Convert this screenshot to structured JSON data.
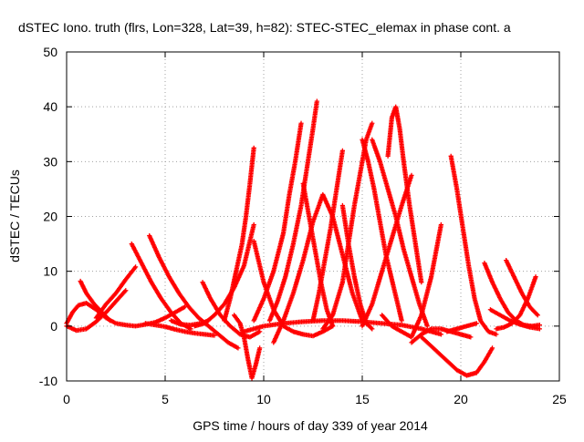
{
  "chart_data": {
    "type": "scatter",
    "title": "dSTEC Iono. truth (flrs, Lon=328, Lat=39, h=82): STEC-STEC_elemax in phase cont. a",
    "xlabel": "GPS time / hours of day 339 of year 2014",
    "ylabel": "dSTEC  / TECUs",
    "xlim": [
      0,
      25
    ],
    "ylim": [
      -10,
      50
    ],
    "xticks": [
      "0",
      "5",
      "10",
      "15",
      "20",
      "25"
    ],
    "yticks": [
      "-10",
      "0",
      "10",
      "20",
      "30",
      "40",
      "50"
    ],
    "grid": true,
    "marker": "plus",
    "color": "#ff0000",
    "series": [
      {
        "x": [
          0.0,
          0.3,
          0.6,
          1.0,
          1.5,
          2.0
        ],
        "y": [
          0.5,
          2.5,
          3.8,
          4.2,
          3.0,
          1.5
        ]
      },
      {
        "x": [
          0.0,
          0.2,
          0.5,
          1.0,
          1.5,
          2.0,
          2.5,
          3.0
        ],
        "y": [
          0.0,
          -0.3,
          -0.8,
          -0.5,
          0.8,
          2.5,
          4.5,
          6.5
        ]
      },
      {
        "x": [
          0.7,
          1.0,
          1.4,
          1.8,
          2.2
        ],
        "y": [
          8.2,
          6.0,
          4.0,
          2.5,
          1.0
        ]
      },
      {
        "x": [
          1.5,
          2.0,
          2.5,
          3.0,
          3.5
        ],
        "y": [
          1.5,
          4.0,
          6.0,
          8.5,
          10.8
        ]
      },
      {
        "x": [
          2.0,
          2.5,
          3.0,
          3.5,
          4.0,
          4.5,
          5.0,
          5.5,
          6.0
        ],
        "y": [
          1.5,
          0.5,
          0.2,
          0.0,
          0.3,
          0.7,
          1.5,
          2.5,
          3.5
        ]
      },
      {
        "x": [
          3.3,
          3.8,
          4.3,
          4.8,
          5.3,
          5.8,
          6.3
        ],
        "y": [
          15.0,
          11.5,
          8.0,
          5.0,
          2.5,
          0.5,
          -0.5
        ]
      },
      {
        "x": [
          4.2,
          4.7,
          5.2,
          5.7,
          6.2,
          6.7,
          7.2,
          7.7,
          8.2,
          8.7
        ],
        "y": [
          16.5,
          12.5,
          9.0,
          6.0,
          3.5,
          1.5,
          0.0,
          -1.5,
          -3.0,
          -4.0
        ]
      },
      {
        "x": [
          4.0,
          4.5,
          5.0,
          5.5,
          6.0,
          6.5,
          7.0,
          7.5
        ],
        "y": [
          0.5,
          0.2,
          -0.1,
          -0.6,
          -1.0,
          -1.3,
          -1.5,
          -1.7
        ]
      },
      {
        "x": [
          5.3,
          5.8,
          6.3,
          6.8,
          7.2
        ],
        "y": [
          1.0,
          0.3,
          0.2,
          0.5,
          1.0
        ]
      },
      {
        "x": [
          6.9,
          7.3,
          7.8,
          8.3,
          8.8,
          9.3,
          9.8
        ],
        "y": [
          8.0,
          5.0,
          2.0,
          0.0,
          -1.5,
          -2.0,
          -1.0
        ]
      },
      {
        "x": [
          6.5,
          7.0,
          7.5,
          8.0,
          8.5,
          9.0,
          9.5
        ],
        "y": [
          0.0,
          0.5,
          2.0,
          4.0,
          7.0,
          11.0,
          18.5
        ]
      },
      {
        "x": [
          8.0,
          8.3,
          8.6,
          8.9,
          9.1,
          9.3,
          9.5
        ],
        "y": [
          1.0,
          5.0,
          10.0,
          15.0,
          20.0,
          26.0,
          32.5
        ]
      },
      {
        "x": [
          8.5,
          8.8,
          9.0,
          9.2,
          9.4,
          9.6,
          9.8
        ],
        "y": [
          2.0,
          0.5,
          -2.0,
          -6.0,
          -9.5,
          -7.0,
          -4.0
        ]
      },
      {
        "x": [
          9.5,
          10.0,
          10.5,
          11.0,
          11.5,
          12.0,
          12.5,
          13.0,
          13.5
        ],
        "y": [
          15.5,
          8.0,
          3.0,
          0.0,
          -1.0,
          -1.5,
          -1.8,
          -1.0,
          0.0
        ]
      },
      {
        "x": [
          9.0,
          10.0,
          11.0,
          12.0,
          13.0,
          14.0,
          15.0,
          16.0,
          17.0,
          18.0,
          19.0
        ],
        "y": [
          -1.0,
          0.0,
          0.5,
          0.8,
          1.0,
          1.0,
          0.8,
          0.5,
          0.2,
          -0.5,
          -1.5
        ]
      },
      {
        "x": [
          9.5,
          10.0,
          10.5,
          11.0,
          11.3,
          11.6,
          11.9
        ],
        "y": [
          1.0,
          5.0,
          10.0,
          17.0,
          24.0,
          30.0,
          37.0
        ]
      },
      {
        "x": [
          10.3,
          10.7,
          11.1,
          11.5,
          11.9,
          12.2,
          12.5,
          12.7
        ],
        "y": [
          1.0,
          4.5,
          9.0,
          15.0,
          22.0,
          29.0,
          36.0,
          41.0
        ]
      },
      {
        "x": [
          12.0,
          12.3,
          12.6,
          12.9,
          13.2,
          13.5
        ],
        "y": [
          26.0,
          20.0,
          14.0,
          8.0,
          3.0,
          0.0
        ]
      },
      {
        "x": [
          12.5,
          12.8,
          13.1,
          13.4,
          13.7,
          14.0
        ],
        "y": [
          1.0,
          6.0,
          12.0,
          18.0,
          25.0,
          32.0
        ]
      },
      {
        "x": [
          10.5,
          11.0,
          11.5,
          12.0,
          12.5,
          13.0,
          13.5,
          14.0,
          14.5,
          15.0
        ],
        "y": [
          -3.0,
          1.0,
          6.0,
          12.0,
          19.0,
          24.0,
          20.0,
          13.0,
          6.0,
          1.0
        ]
      },
      {
        "x": [
          13.0,
          13.5,
          14.0,
          14.3,
          14.6,
          14.9,
          15.2,
          15.5
        ],
        "y": [
          -0.5,
          2.0,
          8.0,
          15.0,
          22.0,
          28.0,
          34.0,
          37.0
        ]
      },
      {
        "x": [
          14.0,
          14.3,
          14.6,
          14.9,
          15.2,
          15.5
        ],
        "y": [
          22.0,
          15.0,
          9.0,
          4.0,
          0.5,
          -0.5
        ]
      },
      {
        "x": [
          15.0,
          15.3,
          15.6,
          15.9,
          16.2,
          16.6,
          17.0
        ],
        "y": [
          34.0,
          30.0,
          25.0,
          19.0,
          13.0,
          7.0,
          1.0
        ]
      },
      {
        "x": [
          15.5,
          15.9,
          16.3,
          16.7,
          17.1,
          17.5,
          17.9,
          18.3
        ],
        "y": [
          34.0,
          30.0,
          25.0,
          20.0,
          14.0,
          9.0,
          4.0,
          0.0
        ]
      },
      {
        "x": [
          16.3,
          16.5,
          16.7,
          16.9,
          17.1,
          17.4,
          17.7,
          18.0
        ],
        "y": [
          31.0,
          38.0,
          40.0,
          36.0,
          30.0,
          22.0,
          15.0,
          8.0
        ]
      },
      {
        "x": [
          15.0,
          15.5,
          16.0,
          16.5,
          17.0,
          17.5
        ],
        "y": [
          0.0,
          4.0,
          10.0,
          16.0,
          22.0,
          27.5
        ]
      },
      {
        "x": [
          16.0,
          16.5,
          17.0,
          17.5,
          18.0,
          18.5,
          19.0
        ],
        "y": [
          2.0,
          0.0,
          -1.0,
          -2.0,
          2.0,
          9.0,
          18.5
        ]
      },
      {
        "x": [
          17.5,
          18.0,
          18.5,
          19.0,
          19.5,
          20.0,
          20.5
        ],
        "y": [
          -3.0,
          -1.5,
          -0.5,
          -0.5,
          -1.0,
          -1.5,
          -2.0
        ]
      },
      {
        "x": [
          19.5,
          19.8,
          20.1,
          20.4,
          20.7,
          21.0,
          21.4,
          21.8
        ],
        "y": [
          31.0,
          25.0,
          18.0,
          11.0,
          5.0,
          1.0,
          -1.0,
          -1.5
        ]
      },
      {
        "x": [
          18.0,
          18.6,
          19.2,
          19.8,
          20.3,
          20.8,
          21.2,
          21.6
        ],
        "y": [
          -2.0,
          -4.0,
          -6.0,
          -8.0,
          -9.0,
          -8.5,
          -6.5,
          -4.0
        ]
      },
      {
        "x": [
          19.3,
          19.8,
          20.3,
          20.8
        ],
        "y": [
          -1.0,
          -0.5,
          0.0,
          0.5
        ]
      },
      {
        "x": [
          21.2,
          21.6,
          22.0,
          22.4,
          22.8,
          23.2,
          23.6,
          24.0
        ],
        "y": [
          11.5,
          8.0,
          5.0,
          2.5,
          1.0,
          0.2,
          0.0,
          0.2
        ]
      },
      {
        "x": [
          22.3,
          22.7,
          23.1,
          23.5,
          23.9
        ],
        "y": [
          12.0,
          9.0,
          6.0,
          3.5,
          2.0
        ]
      },
      {
        "x": [
          21.8,
          22.2,
          22.6,
          23.0,
          23.4,
          23.8
        ],
        "y": [
          -0.5,
          -0.2,
          0.5,
          2.0,
          5.0,
          9.0
        ]
      },
      {
        "x": [
          21.5,
          22.0,
          22.5,
          23.0,
          23.5,
          24.0
        ],
        "y": [
          3.0,
          2.0,
          1.0,
          0.3,
          -0.2,
          -0.5
        ]
      }
    ]
  }
}
